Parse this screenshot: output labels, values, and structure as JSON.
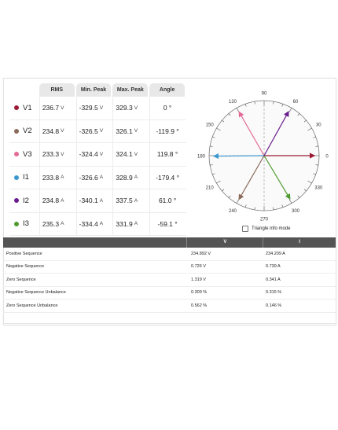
{
  "measurements": {
    "headers": [
      "RMS",
      "Min. Peak",
      "Max. Peak",
      "Angle"
    ],
    "rows": [
      {
        "name": "V1",
        "color": "#9b1b34",
        "rms": "236.7",
        "rms_unit": "V",
        "min": "-329.5",
        "min_unit": "V",
        "max": "329.3",
        "max_unit": "V",
        "angle": "0 °"
      },
      {
        "name": "V2",
        "color": "#8a6a5a",
        "rms": "234.8",
        "rms_unit": "V",
        "min": "-326.5",
        "min_unit": "V",
        "max": "326.1",
        "max_unit": "V",
        "angle": "-119.9 °"
      },
      {
        "name": "V3",
        "color": "#e46a97",
        "rms": "233.3",
        "rms_unit": "V",
        "min": "-324.4",
        "min_unit": "V",
        "max": "324.1",
        "max_unit": "V",
        "angle": "119.8 °"
      },
      {
        "name": "I1",
        "color": "#3a98cf",
        "rms": "233.8",
        "rms_unit": "A",
        "min": "-326.6",
        "min_unit": "A",
        "max": "328.9",
        "max_unit": "A",
        "angle": "-179.4 °"
      },
      {
        "name": "I2",
        "color": "#6a1d8c",
        "rms": "234.8",
        "rms_unit": "A",
        "min": "-340.1",
        "min_unit": "A",
        "max": "337.5",
        "max_unit": "A",
        "angle": "61.0 °"
      },
      {
        "name": "I3",
        "color": "#4f9a2e",
        "rms": "235.3",
        "rms_unit": "A",
        "min": "-334.4",
        "min_unit": "A",
        "max": "331.9",
        "max_unit": "A",
        "angle": "-59.1 °"
      }
    ]
  },
  "phasor": {
    "angle_labels": [
      "0",
      "30",
      "60",
      "90",
      "120",
      "150",
      "180",
      "210",
      "240",
      "270",
      "300",
      "330"
    ],
    "vectors": [
      {
        "name": "V1",
        "angle": 0,
        "color": "#9b1b34",
        "style": "solid"
      },
      {
        "name": "V2",
        "angle": -119.9,
        "color": "#8a6a5a",
        "style": "solid"
      },
      {
        "name": "V3",
        "angle": 119.8,
        "color": "#e46a97",
        "style": "solid"
      },
      {
        "name": "I1",
        "angle": -179.4,
        "color": "#3a98cf",
        "style": "solid"
      },
      {
        "name": "I2",
        "angle": 61.0,
        "color": "#6a1d8c",
        "style": "solid"
      },
      {
        "name": "I3",
        "angle": -59.1,
        "color": "#4f9a2e",
        "style": "solid"
      }
    ],
    "triangle_label": "Triangle info mode",
    "triangle_checked": false
  },
  "sequence": {
    "headers": [
      "",
      "V",
      "I"
    ],
    "rows": [
      {
        "label": "Positive Sequence",
        "v": "234.892 V",
        "i": "234.209 A"
      },
      {
        "label": "Negative Sequence",
        "v": "0.726 V",
        "i": "0.739 A"
      },
      {
        "label": "Zero Sequence",
        "v": "1.319 V",
        "i": "0.341 A"
      },
      {
        "label": "Negative Sequence Unbalance",
        "v": "0.309 %",
        "i": "0.315 %"
      },
      {
        "label": "Zero Sequence Unbalance",
        "v": "0.562 %",
        "i": "0.146 %"
      }
    ]
  }
}
